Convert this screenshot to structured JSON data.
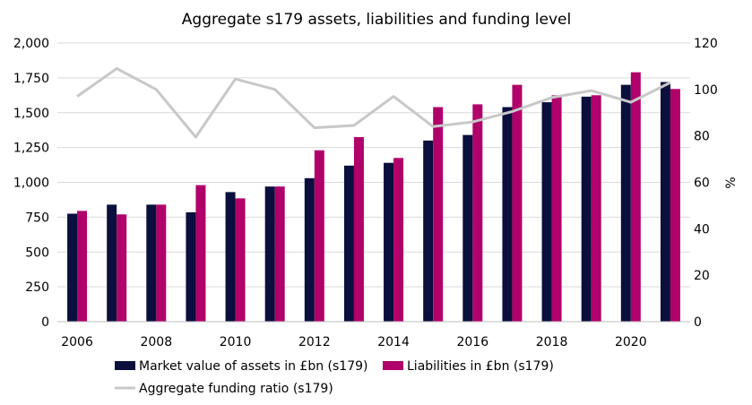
{
  "chart_data": {
    "type": "bar",
    "title": "Aggregate s179 assets, liabilities and funding level",
    "xlabel": "",
    "ylabel": "",
    "y2label": "%",
    "categories": [
      "2006",
      "2007",
      "2008",
      "2009",
      "2010",
      "2011",
      "2012",
      "2013",
      "2014",
      "2015",
      "2016",
      "2017",
      "2018",
      "2019",
      "2020",
      "2021"
    ],
    "x_tick_labels": [
      "2006",
      "2008",
      "2010",
      "2012",
      "2014",
      "2016",
      "2018",
      "2020"
    ],
    "ylim": [
      0,
      2000
    ],
    "y_ticks": [
      "0",
      "250",
      "500",
      "750",
      "1,000",
      "1,250",
      "1,500",
      "1,750",
      "2,000"
    ],
    "y2lim": [
      0,
      120
    ],
    "y2_ticks": [
      "0",
      "20",
      "40",
      "60",
      "80",
      "100",
      "120"
    ],
    "grid": "horizontal",
    "legend_position": "bottom",
    "series": [
      {
        "name": "Market value of assets in £bn (s179)",
        "kind": "bar",
        "axis": "left",
        "color": "#0a0f3d",
        "values": [
          775,
          840,
          840,
          785,
          930,
          970,
          1030,
          1120,
          1140,
          1300,
          1340,
          1540,
          1575,
          1615,
          1700,
          1720
        ]
      },
      {
        "name": "Liabilities in £bn (s179)",
        "kind": "bar",
        "axis": "left",
        "color": "#b0006a",
        "values": [
          795,
          770,
          840,
          980,
          885,
          970,
          1230,
          1325,
          1175,
          1540,
          1560,
          1700,
          1625,
          1625,
          1790,
          1670
        ]
      },
      {
        "name": "Aggregate funding ratio (s179)",
        "kind": "line",
        "axis": "right",
        "color": "#c8c8c8",
        "values": [
          97,
          109,
          100,
          79.5,
          104.5,
          100,
          83.5,
          84.5,
          97,
          84,
          86,
          90.5,
          96.5,
          99.5,
          94.5,
          103
        ]
      }
    ]
  }
}
